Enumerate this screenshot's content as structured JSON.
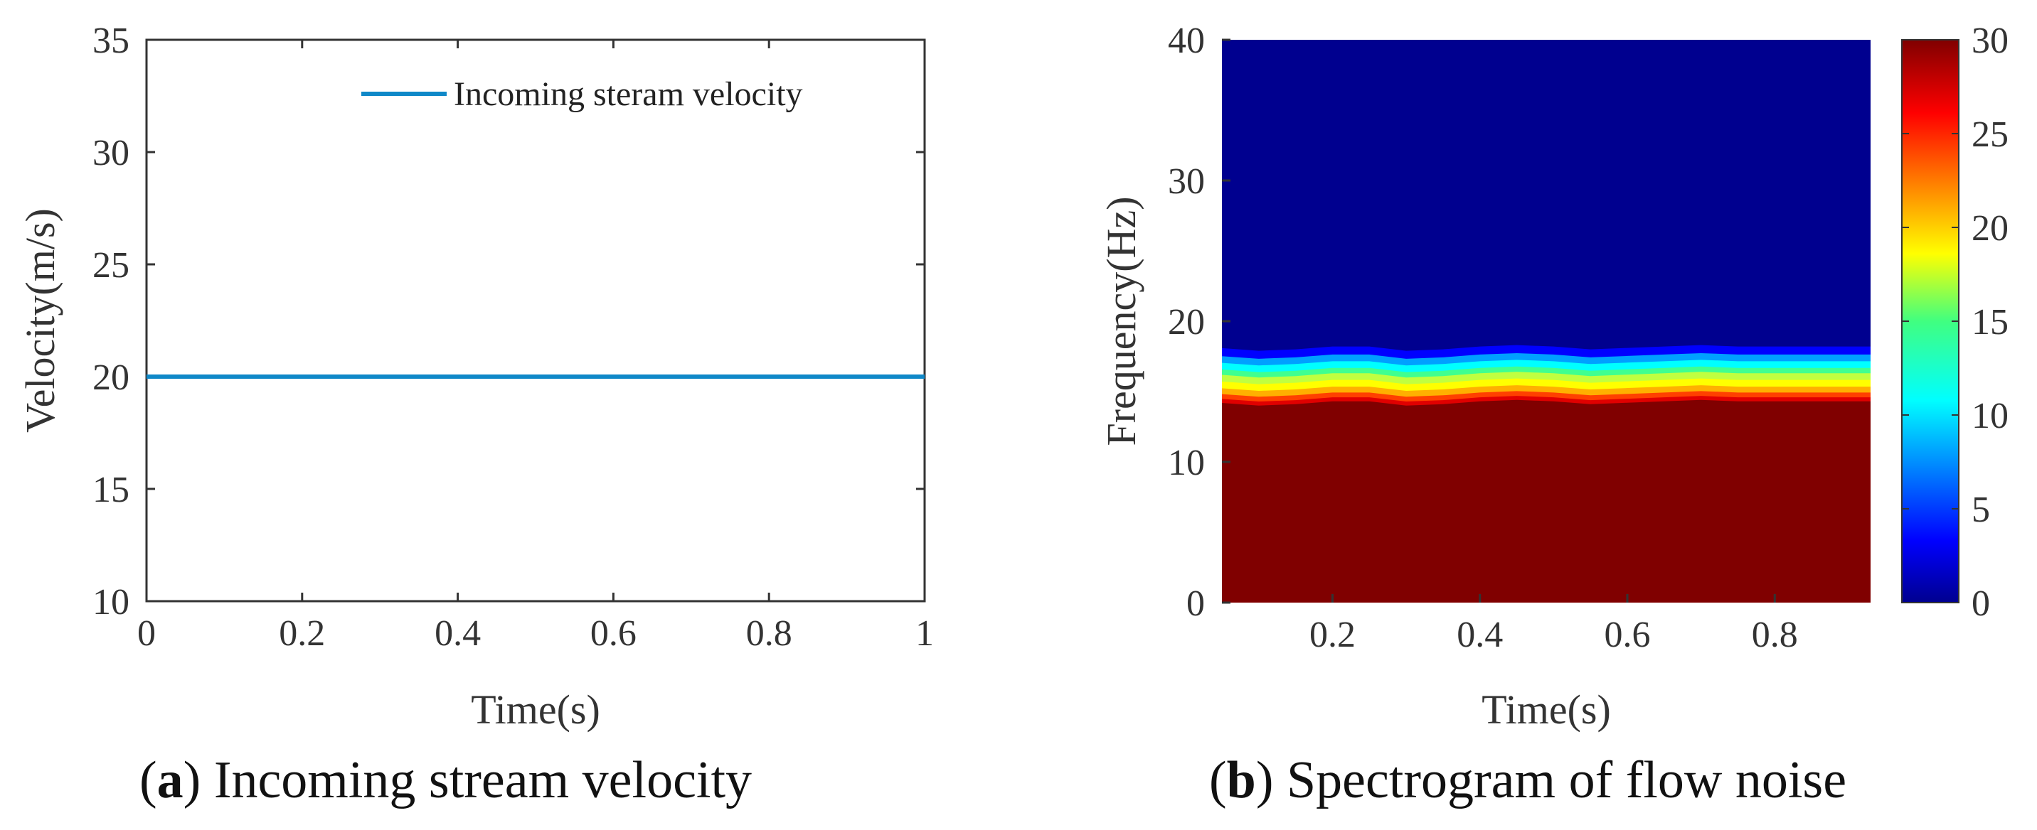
{
  "chart_data": [
    {
      "type": "line",
      "id": "a",
      "title": "",
      "xlabel": "Time(s)",
      "ylabel": "Velocity(m/s)",
      "xlim": [
        0,
        1
      ],
      "ylim": [
        10,
        35
      ],
      "xticks": [
        0,
        0.2,
        0.4,
        0.6,
        0.8,
        1
      ],
      "xtick_labels": [
        "0",
        "0.2",
        "0.4",
        "0.6",
        "0.8",
        "1"
      ],
      "yticks": [
        10,
        15,
        20,
        25,
        30,
        35
      ],
      "ytick_labels": [
        "10",
        "15",
        "20",
        "25",
        "30",
        "35"
      ],
      "grid": false,
      "legend_position": "top-right",
      "series": [
        {
          "name": "Incoming steram velocity",
          "color": "#0f88c8",
          "x": [
            0,
            1
          ],
          "y": [
            20,
            20
          ]
        }
      ],
      "caption_letter": "a",
      "caption_text": " Incoming stream velocity"
    },
    {
      "type": "heatmap",
      "id": "b",
      "title": "",
      "xlabel": "Time(s)",
      "ylabel": "Frequency(Hz)",
      "xlim": [
        0.05,
        0.93
      ],
      "ylim": [
        0,
        40
      ],
      "xticks": [
        0.2,
        0.4,
        0.6,
        0.8
      ],
      "xtick_labels": [
        "0.2",
        "0.4",
        "0.6",
        "0.8"
      ],
      "yticks": [
        0,
        10,
        20,
        30,
        40
      ],
      "ytick_labels": [
        "0",
        "10",
        "20",
        "30",
        "40"
      ],
      "colorbar": {
        "range": [
          0,
          30
        ],
        "ticks": [
          0,
          5,
          10,
          15,
          20,
          25,
          30
        ],
        "tick_labels": [
          "0",
          "5",
          "10",
          "15",
          "20",
          "25",
          "30"
        ],
        "colormap": "jet"
      },
      "transition": {
        "description": "high power (30) below ~15 Hz, low power (0) above ~18 Hz",
        "time": [
          0.05,
          0.1,
          0.15,
          0.2,
          0.25,
          0.3,
          0.35,
          0.4,
          0.45,
          0.5,
          0.55,
          0.6,
          0.65,
          0.7,
          0.75,
          0.8,
          0.85,
          0.93
        ],
        "center_freq_hz": [
          16.2,
          16.0,
          16.1,
          16.3,
          16.3,
          16.0,
          16.1,
          16.3,
          16.4,
          16.3,
          16.1,
          16.2,
          16.3,
          16.4,
          16.3,
          16.3,
          16.3,
          16.3
        ],
        "half_width_hz": 1.9
      },
      "caption_letter": "b",
      "caption_text": " Spectrogram of flow noise"
    }
  ]
}
